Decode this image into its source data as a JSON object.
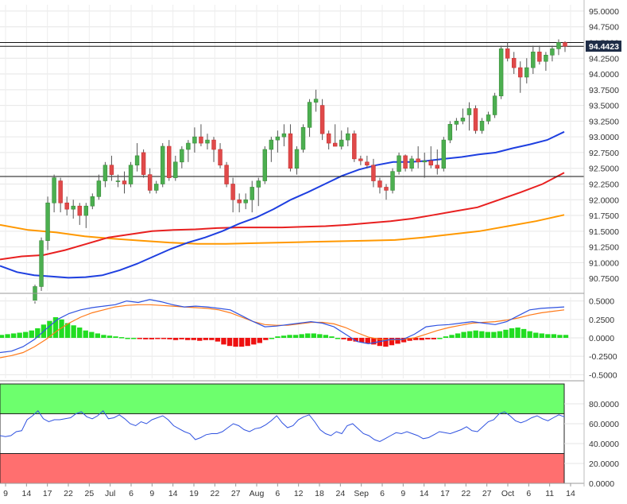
{
  "chart_data": {
    "type": "candlestick",
    "grid": true,
    "price_panel": {
      "ylim": [
        90.55,
        95.1
      ],
      "y_ticks": [
        "95.0000",
        "94.7500",
        "94.5000",
        "94.2500",
        "94.0000",
        "93.7500",
        "93.5000",
        "93.2500",
        "93.0000",
        "92.7500",
        "92.5000",
        "92.2500",
        "92.0000",
        "91.7500",
        "91.5000",
        "91.2500",
        "91.0000",
        "90.7500"
      ],
      "last_price_label": "94.4423",
      "last_price": 94.4423,
      "horizontal_levels": [
        94.44,
        94.5,
        92.37
      ],
      "candles": [
        [
          90.4,
          90.65,
          90.35,
          90.62
        ],
        [
          90.62,
          91.4,
          90.55,
          91.35
        ],
        [
          91.35,
          92.05,
          91.2,
          91.95
        ],
        [
          91.95,
          92.4,
          91.8,
          92.35
        ],
        [
          92.3,
          92.35,
          91.8,
          91.95
        ],
        [
          91.95,
          92.05,
          91.75,
          91.85
        ],
        [
          91.85,
          92.0,
          91.7,
          91.9
        ],
        [
          91.9,
          91.95,
          91.6,
          91.75
        ],
        [
          91.75,
          91.95,
          91.55,
          91.9
        ],
        [
          91.9,
          92.1,
          91.85,
          92.05
        ],
        [
          92.05,
          92.4,
          92.0,
          92.3
        ],
        [
          92.3,
          92.6,
          92.2,
          92.55
        ],
        [
          92.55,
          92.7,
          92.3,
          92.4
        ],
        [
          92.3,
          92.4,
          92.2,
          92.3
        ],
        [
          92.3,
          92.45,
          92.1,
          92.25
        ],
        [
          92.25,
          92.6,
          92.2,
          92.55
        ],
        [
          92.55,
          92.9,
          92.45,
          92.7
        ],
        [
          92.75,
          92.8,
          92.35,
          92.4
        ],
        [
          92.4,
          92.5,
          92.1,
          92.15
        ],
        [
          92.15,
          92.3,
          92.1,
          92.25
        ],
        [
          92.25,
          92.9,
          92.2,
          92.85
        ],
        [
          92.85,
          92.95,
          92.3,
          92.35
        ],
        [
          92.35,
          92.7,
          92.3,
          92.6
        ],
        [
          92.6,
          92.85,
          92.5,
          92.8
        ],
        [
          92.8,
          92.95,
          92.6,
          92.9
        ],
        [
          92.9,
          93.15,
          92.75,
          93.0
        ],
        [
          93.0,
          93.2,
          92.85,
          92.9
        ],
        [
          92.9,
          93.05,
          92.8,
          92.95
        ],
        [
          92.95,
          93.0,
          92.6,
          92.8
        ],
        [
          92.8,
          92.9,
          92.5,
          92.55
        ],
        [
          92.55,
          92.6,
          92.2,
          92.25
        ],
        [
          92.25,
          92.35,
          91.8,
          92.0
        ],
        [
          92.0,
          92.1,
          91.8,
          91.95
        ],
        [
          91.95,
          92.1,
          91.85,
          92.0
        ],
        [
          92.0,
          92.3,
          91.8,
          92.2
        ],
        [
          92.2,
          92.35,
          91.9,
          92.3
        ],
        [
          92.3,
          92.85,
          92.25,
          92.8
        ],
        [
          92.8,
          93.0,
          92.6,
          92.95
        ],
        [
          92.95,
          93.1,
          92.75,
          93.0
        ],
        [
          93.0,
          93.2,
          92.85,
          93.05
        ],
        [
          93.05,
          93.2,
          92.45,
          92.5
        ],
        [
          92.5,
          92.85,
          92.4,
          92.8
        ],
        [
          92.8,
          93.2,
          92.75,
          93.15
        ],
        [
          93.15,
          93.6,
          93.0,
          93.55
        ],
        [
          93.55,
          93.75,
          93.4,
          93.6
        ],
        [
          93.5,
          93.6,
          92.95,
          93.05
        ],
        [
          93.05,
          93.1,
          92.8,
          92.9
        ],
        [
          92.9,
          93.2,
          92.85,
          92.85
        ],
        [
          92.85,
          93.1,
          92.8,
          92.95
        ],
        [
          92.95,
          93.15,
          92.85,
          93.05
        ],
        [
          93.05,
          93.1,
          92.6,
          92.65
        ],
        [
          92.65,
          92.7,
          92.55,
          92.62
        ],
        [
          92.6,
          92.7,
          92.5,
          92.55
        ],
        [
          92.55,
          92.65,
          92.2,
          92.3
        ],
        [
          92.3,
          92.35,
          92.1,
          92.2
        ],
        [
          92.2,
          92.25,
          92.0,
          92.15
        ],
        [
          92.15,
          92.5,
          92.1,
          92.45
        ],
        [
          92.45,
          92.75,
          92.4,
          92.7
        ],
        [
          92.7,
          92.72,
          92.45,
          92.5
        ],
        [
          92.5,
          92.7,
          92.45,
          92.65
        ],
        [
          92.65,
          92.85,
          92.5,
          92.6
        ],
        [
          92.6,
          92.75,
          92.35,
          92.62
        ],
        [
          92.62,
          92.85,
          92.5,
          92.55
        ],
        [
          92.55,
          92.8,
          92.4,
          92.5
        ],
        [
          92.5,
          93.0,
          92.45,
          92.95
        ],
        [
          92.95,
          93.25,
          92.9,
          93.2
        ],
        [
          93.2,
          93.3,
          93.1,
          93.25
        ],
        [
          93.25,
          93.45,
          93.2,
          93.3
        ],
        [
          93.35,
          93.55,
          93.1,
          93.45
        ],
        [
          93.45,
          93.5,
          93.05,
          93.1
        ],
        [
          93.1,
          93.3,
          93.05,
          93.25
        ],
        [
          93.25,
          93.4,
          93.2,
          93.35
        ],
        [
          93.35,
          93.7,
          93.3,
          93.65
        ],
        [
          93.65,
          94.45,
          93.6,
          94.4
        ],
        [
          94.4,
          94.5,
          94.2,
          94.25
        ],
        [
          94.25,
          94.35,
          94.0,
          94.1
        ],
        [
          94.1,
          94.2,
          93.7,
          93.95
        ],
        [
          93.95,
          94.25,
          93.85,
          94.1
        ],
        [
          94.1,
          94.45,
          94.0,
          94.35
        ],
        [
          94.35,
          94.45,
          94.15,
          94.2
        ],
        [
          94.2,
          94.35,
          94.05,
          94.3
        ],
        [
          94.3,
          94.45,
          94.2,
          94.4
        ],
        [
          94.4,
          94.55,
          94.3,
          94.5
        ],
        [
          94.5,
          94.52,
          94.35,
          94.44
        ]
      ],
      "sma_50": [
        90.95,
        90.85,
        90.8,
        90.78,
        90.76,
        90.77,
        90.8,
        90.88,
        90.98,
        91.1,
        91.22,
        91.32,
        91.4,
        91.5,
        91.62,
        91.72,
        91.85,
        92.0,
        92.12,
        92.25,
        92.38,
        92.48,
        92.55,
        92.6,
        92.6,
        92.62,
        92.65,
        92.68,
        92.72,
        92.75,
        92.82,
        92.88,
        92.95,
        93.08
      ],
      "sma_100": [
        91.05,
        91.1,
        91.12,
        91.2,
        91.3,
        91.4,
        91.45,
        91.5,
        91.52,
        91.53,
        91.55,
        91.56,
        91.56,
        91.56,
        91.57,
        91.58,
        91.6,
        91.63,
        91.66,
        91.7,
        91.76,
        91.82,
        91.88,
        92.0,
        92.12,
        92.25,
        92.43
      ],
      "sma_200": [
        91.6,
        91.52,
        91.48,
        91.42,
        91.38,
        91.35,
        91.32,
        91.3,
        91.3,
        91.31,
        91.32,
        91.33,
        91.34,
        91.35,
        91.36,
        91.4,
        91.45,
        91.5,
        91.58,
        91.66,
        91.76
      ]
    },
    "macd_panel": {
      "ylim": [
        -0.55,
        0.55
      ],
      "y_ticks": [
        "0.5000",
        "0.2500",
        "0.0000",
        "-0.2500",
        "-0.5000"
      ],
      "histogram": [
        0.04,
        0.05,
        0.06,
        0.07,
        0.08,
        0.1,
        0.13,
        0.18,
        0.23,
        0.28,
        0.25,
        0.2,
        0.17,
        0.14,
        0.1,
        0.08,
        0.06,
        0.04,
        0.03,
        0.02,
        0.01,
        0.0,
        0.0,
        -0.01,
        -0.02,
        -0.02,
        -0.01,
        -0.01,
        -0.02,
        -0.03,
        -0.02,
        -0.03,
        -0.03,
        -0.04,
        -0.03,
        -0.03,
        -0.05,
        -0.09,
        -0.11,
        -0.12,
        -0.12,
        -0.11,
        -0.09,
        -0.07,
        -0.03,
        0.0,
        0.02,
        0.03,
        0.04,
        0.04,
        0.05,
        0.06,
        0.06,
        0.05,
        0.04,
        0.02,
        0.0,
        -0.02,
        -0.04,
        -0.05,
        -0.06,
        -0.07,
        -0.09,
        -0.11,
        -0.12,
        -0.1,
        -0.08,
        -0.06,
        -0.04,
        -0.03,
        -0.03,
        -0.02,
        -0.02,
        0.0,
        0.02,
        0.04,
        0.06,
        0.08,
        0.09,
        0.1,
        0.09,
        0.08,
        0.08,
        0.09,
        0.11,
        0.13,
        0.14,
        0.12,
        0.09,
        0.07,
        0.06,
        0.05,
        0.05,
        0.04,
        0.04
      ],
      "macd_line": [
        -0.2,
        -0.18,
        -0.12,
        -0.02,
        0.12,
        0.25,
        0.33,
        0.38,
        0.41,
        0.43,
        0.45,
        0.5,
        0.48,
        0.52,
        0.49,
        0.45,
        0.42,
        0.43,
        0.42,
        0.4,
        0.38,
        0.3,
        0.22,
        0.15,
        0.16,
        0.18,
        0.2,
        0.22,
        0.2,
        0.15,
        0.05,
        -0.05,
        -0.08,
        -0.05,
        -0.02,
        -0.02,
        0.05,
        0.15,
        0.17,
        0.18,
        0.2,
        0.22,
        0.2,
        0.18,
        0.22,
        0.3,
        0.38,
        0.4,
        0.41,
        0.42
      ],
      "signal_line": [
        -0.27,
        -0.24,
        -0.2,
        -0.12,
        -0.02,
        0.1,
        0.2,
        0.28,
        0.34,
        0.38,
        0.42,
        0.44,
        0.45,
        0.45,
        0.44,
        0.43,
        0.42,
        0.41,
        0.4,
        0.38,
        0.34,
        0.28,
        0.22,
        0.18,
        0.17,
        0.17,
        0.19,
        0.21,
        0.21,
        0.19,
        0.14,
        0.07,
        0.01,
        -0.02,
        -0.03,
        -0.02,
        0.0,
        0.05,
        0.1,
        0.14,
        0.17,
        0.2,
        0.21,
        0.22,
        0.24,
        0.27,
        0.31,
        0.34,
        0.36,
        0.38
      ]
    },
    "rsi_panel": {
      "ylim": [
        0,
        100
      ],
      "y_ticks": [
        "80.0000",
        "60.0000",
        "40.0000",
        "20.0000",
        "0.0000"
      ],
      "overbought": 70,
      "oversold": 30,
      "values": [
        48,
        47,
        48,
        52,
        53,
        64,
        68,
        73,
        65,
        62,
        64,
        64,
        65,
        66,
        70,
        72,
        67,
        65,
        68,
        73,
        65,
        66,
        69,
        65,
        60,
        58,
        62,
        60,
        64,
        66,
        68,
        64,
        58,
        55,
        52,
        50,
        44,
        46,
        49,
        50,
        50,
        52,
        56,
        60,
        58,
        54,
        52,
        55,
        56,
        59,
        63,
        68,
        61,
        56,
        58,
        64,
        67,
        69,
        62,
        54,
        50,
        48,
        52,
        50,
        58,
        60,
        55,
        50,
        48,
        44,
        42,
        45,
        48,
        51,
        50,
        52,
        50,
        48,
        45,
        46,
        49,
        52,
        51,
        50,
        52,
        54,
        57,
        53,
        52,
        57,
        62,
        64,
        70,
        72,
        68,
        63,
        61,
        63,
        66,
        68,
        65,
        63,
        66,
        69,
        67
      ]
    },
    "x_axis_labels": [
      "9",
      "14",
      "17",
      "22",
      "25",
      "Jul",
      "6",
      "9",
      "14",
      "19",
      "22",
      "27",
      "Aug",
      "6",
      "12",
      "18",
      "24",
      "Sep",
      "6",
      "9",
      "14",
      "17",
      "22",
      "27",
      "Oct",
      "6",
      "11",
      "14"
    ]
  }
}
